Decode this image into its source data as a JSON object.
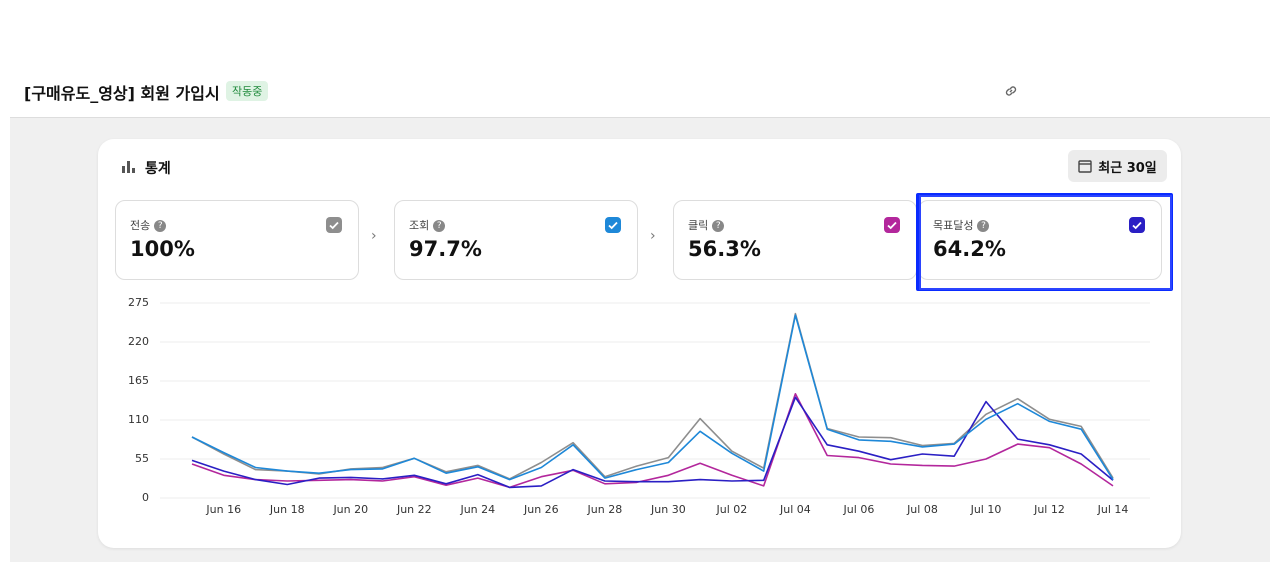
{
  "header": {
    "title": "[구매유도_영상] 회원 가입시",
    "status": "작동중"
  },
  "panel": {
    "title": "통계",
    "date_range": "최근 30일"
  },
  "metrics": [
    {
      "value": "100%"
    },
    {
      "value": "97.7%"
    },
    {
      "value": "56.3%"
    },
    {
      "value": "64.2%"
    }
  ],
  "chart_data": {
    "type": "line",
    "categories": [
      null,
      "Jun 16",
      null,
      "Jun 18",
      null,
      "Jun 20",
      null,
      "Jun 22",
      null,
      "Jun 24",
      null,
      "Jun 26",
      null,
      "Jun 28",
      null,
      "Jun 30",
      null,
      "Jul 02",
      null,
      "Jul 04",
      null,
      "Jul 06",
      null,
      "Jul 08",
      null,
      "Jul 10",
      null,
      "Jul 12",
      null,
      "Jul 14"
    ],
    "series": [
      {
        "name": "전송",
        "color": "#8e8e8e",
        "values": [
          86,
          62,
          40,
          38,
          34,
          41,
          43,
          56,
          37,
          46,
          27,
          50,
          78,
          30,
          45,
          57,
          112,
          66,
          42,
          260,
          98,
          86,
          85,
          74,
          77,
          118,
          140,
          111,
          101,
          28
        ]
      },
      {
        "name": "조회",
        "color": "#1e88d8",
        "values": [
          86,
          64,
          43,
          38,
          35,
          40,
          41,
          56,
          35,
          44,
          26,
          43,
          75,
          28,
          40,
          50,
          94,
          63,
          38,
          258,
          97,
          82,
          80,
          72,
          76,
          111,
          133,
          108,
          97,
          26
        ]
      },
      {
        "name": "클릭",
        "color": "#b3279c",
        "values": [
          48,
          32,
          26,
          24,
          25,
          26,
          24,
          30,
          18,
          28,
          15,
          30,
          39,
          20,
          22,
          32,
          49,
          32,
          17,
          147,
          60,
          57,
          48,
          46,
          45,
          55,
          76,
          71,
          48,
          17
        ]
      },
      {
        "name": "목표달성",
        "color": "#2a1fc4",
        "values": [
          53,
          38,
          26,
          19,
          28,
          29,
          27,
          32,
          20,
          33,
          15,
          17,
          40,
          24,
          23,
          23,
          26,
          24,
          25,
          142,
          75,
          66,
          54,
          62,
          59,
          136,
          83,
          75,
          62,
          25
        ]
      }
    ],
    "ylim": [
      0,
      275
    ],
    "yticks": [
      0,
      55,
      110,
      165,
      220,
      275
    ],
    "grid": true
  }
}
